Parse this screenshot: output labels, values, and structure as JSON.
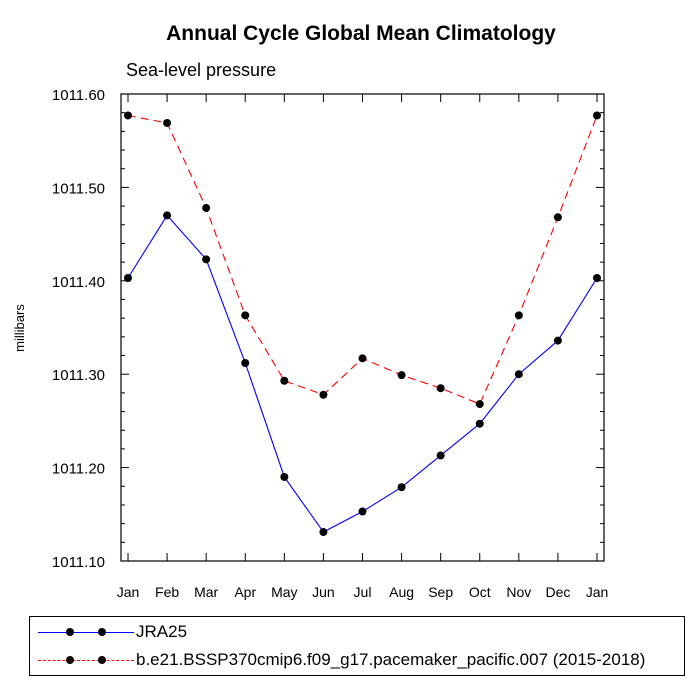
{
  "chart_data": {
    "type": "line",
    "title": "Annual Cycle Global Mean Climatology",
    "subtitle": "Sea-level pressure",
    "xlabel": "",
    "ylabel": "millibars",
    "categories": [
      "Jan",
      "Feb",
      "Mar",
      "Apr",
      "May",
      "Jun",
      "Jul",
      "Aug",
      "Sep",
      "Oct",
      "Nov",
      "Dec",
      "Jan"
    ],
    "yticks": [
      "1011.10",
      "1011.20",
      "1011.30",
      "1011.40",
      "1011.50",
      "1011.60"
    ],
    "ylim": [
      1011.1,
      1011.6
    ],
    "legend_position": "bottom",
    "series": [
      {
        "name": "JRA25",
        "color": "#0000ff",
        "style": "solid",
        "values": [
          1011.403,
          1011.47,
          1011.423,
          1011.312,
          1011.19,
          1011.131,
          1011.153,
          1011.179,
          1011.213,
          1011.247,
          1011.3,
          1011.336,
          1011.403
        ]
      },
      {
        "name": "b.e21.BSSP370cmip6.f09_g17.pacemaker_pacific.007 (2015-2018)",
        "color": "#ff0000",
        "style": "dashed",
        "values": [
          1011.577,
          1011.569,
          1011.478,
          1011.363,
          1011.293,
          1011.278,
          1011.317,
          1011.299,
          1011.285,
          1011.268,
          1011.363,
          1011.468,
          1011.577
        ]
      }
    ]
  }
}
